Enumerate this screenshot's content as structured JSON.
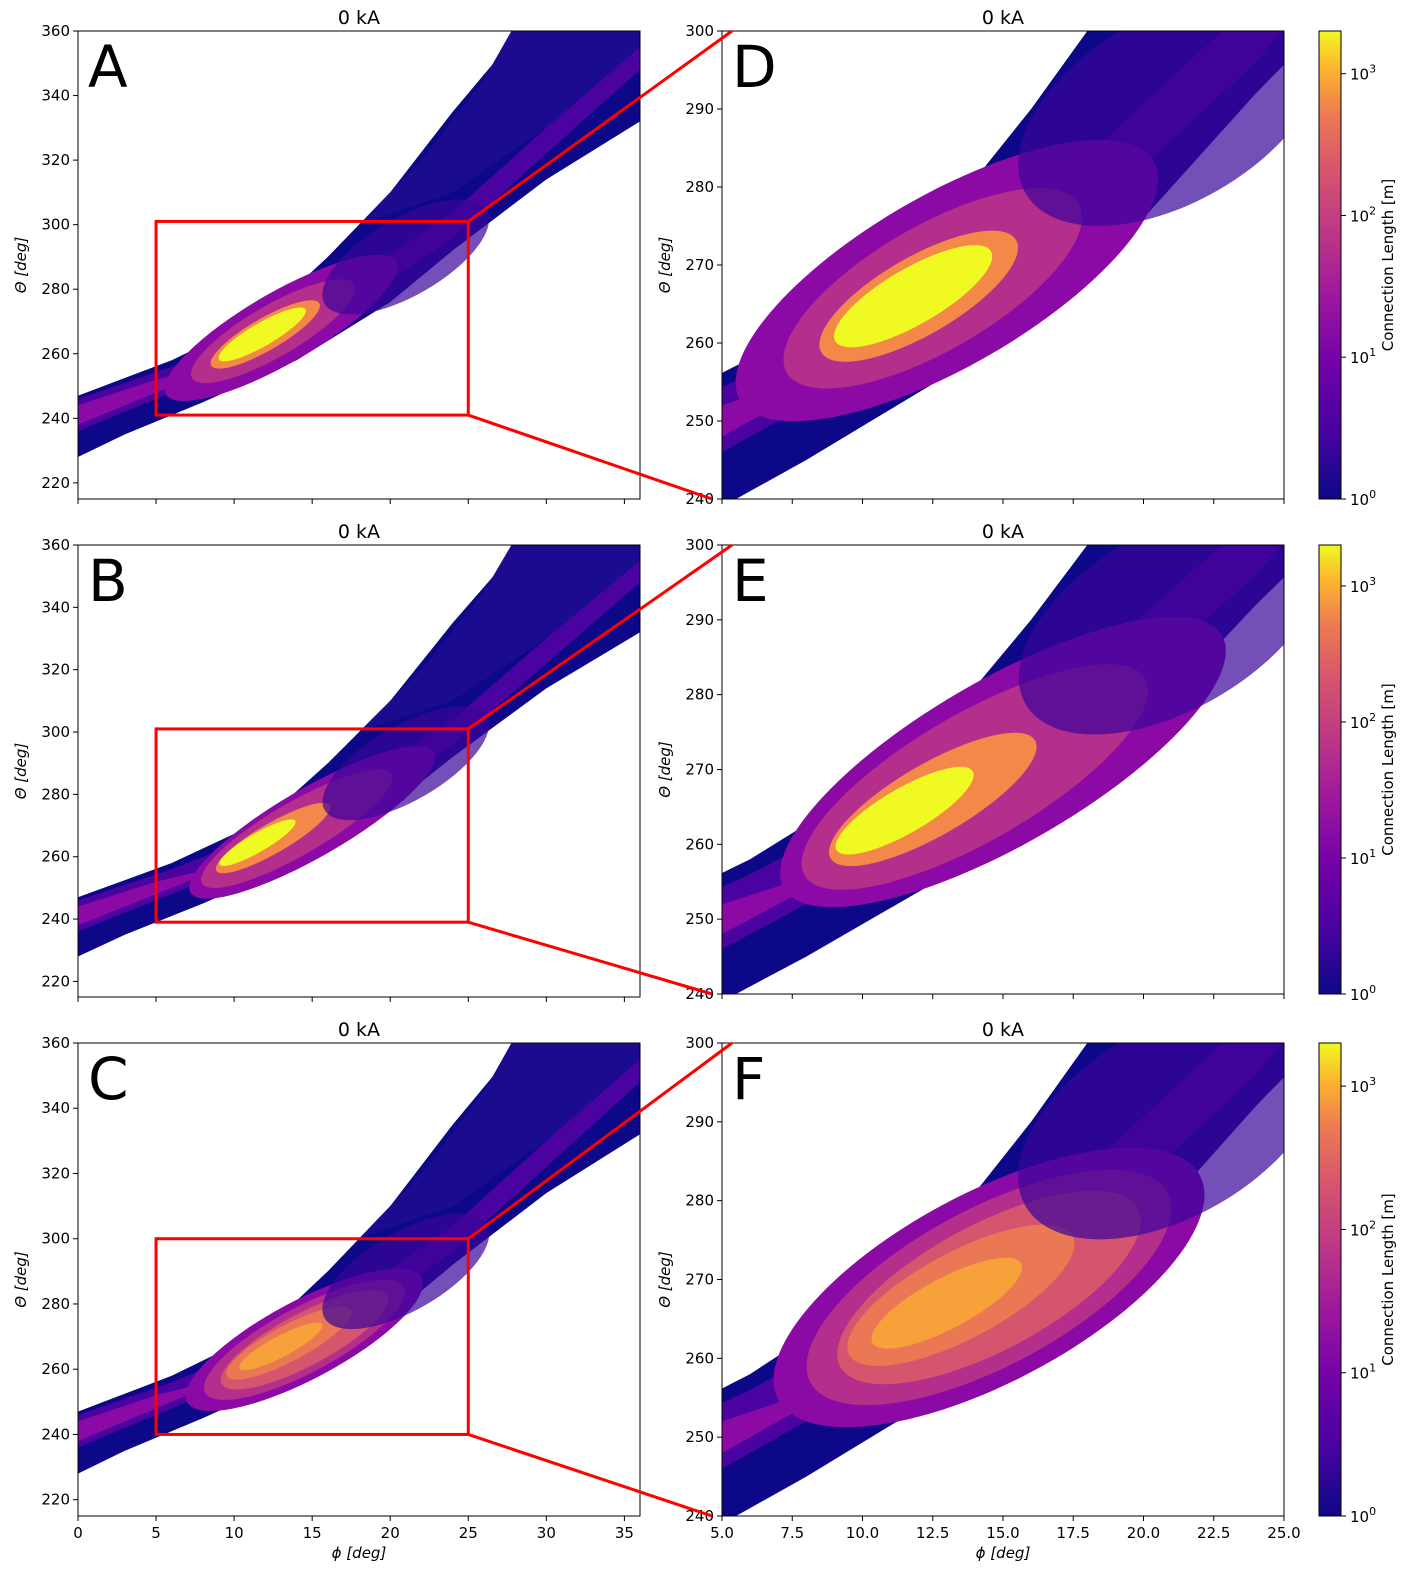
{
  "figure_title": "0 kA",
  "chart_data": [
    {
      "type": "heatmap",
      "panel": "A",
      "title": "0 kA",
      "xlabel": "ϕ [deg]",
      "ylabel": "Θ [deg]",
      "xlim": [
        0,
        36
      ],
      "ylim": [
        215,
        360
      ],
      "x_ticks": [
        0,
        5,
        10,
        15,
        20,
        25,
        30,
        35
      ],
      "y_ticks": [
        220,
        240,
        260,
        280,
        300,
        320,
        340,
        360
      ],
      "show_x_tick_labels": false,
      "show_xlabel": false,
      "zoom_box": {
        "x": [
          5,
          25
        ],
        "y": [
          241,
          301
        ]
      }
    },
    {
      "type": "heatmap",
      "panel": "B",
      "title": "0 kA",
      "xlabel": "ϕ [deg]",
      "ylabel": "Θ [deg]",
      "xlim": [
        0,
        36
      ],
      "ylim": [
        215,
        360
      ],
      "x_ticks": [
        0,
        5,
        10,
        15,
        20,
        25,
        30,
        35
      ],
      "y_ticks": [
        220,
        240,
        260,
        280,
        300,
        320,
        340,
        360
      ],
      "show_x_tick_labels": false,
      "show_xlabel": false,
      "zoom_box": {
        "x": [
          5,
          25
        ],
        "y": [
          239,
          301
        ]
      }
    },
    {
      "type": "heatmap",
      "panel": "C",
      "title": "0 kA",
      "xlabel": "ϕ [deg]",
      "ylabel": "Θ [deg]",
      "xlim": [
        0,
        36
      ],
      "ylim": [
        215,
        360
      ],
      "x_ticks": [
        0,
        5,
        10,
        15,
        20,
        25,
        30,
        35
      ],
      "y_ticks": [
        220,
        240,
        260,
        280,
        300,
        320,
        340,
        360
      ],
      "show_x_tick_labels": true,
      "show_xlabel": true,
      "zoom_box": {
        "x": [
          5,
          25
        ],
        "y": [
          240,
          300
        ]
      }
    },
    {
      "type": "heatmap",
      "panel": "D",
      "title": "0 kA",
      "xlabel": "ϕ [deg]",
      "ylabel": "Θ [deg]",
      "xlim": [
        5,
        25
      ],
      "ylim": [
        240,
        300
      ],
      "x_ticks": [
        5.0,
        7.5,
        10.0,
        12.5,
        15.0,
        17.5,
        20.0,
        22.5,
        25.0
      ],
      "y_ticks": [
        240,
        250,
        260,
        270,
        280,
        290,
        300
      ],
      "show_x_tick_labels": false,
      "show_xlabel": false
    },
    {
      "type": "heatmap",
      "panel": "E",
      "title": "0 kA",
      "xlabel": "ϕ [deg]",
      "ylabel": "Θ [deg]",
      "xlim": [
        5,
        25
      ],
      "ylim": [
        240,
        300
      ],
      "x_ticks": [
        5.0,
        7.5,
        10.0,
        12.5,
        15.0,
        17.5,
        20.0,
        22.5,
        25.0
      ],
      "y_ticks": [
        240,
        250,
        260,
        270,
        280,
        290,
        300
      ],
      "show_x_tick_labels": false,
      "show_xlabel": false
    },
    {
      "type": "heatmap",
      "panel": "F",
      "title": "0 kA",
      "xlabel": "ϕ [deg]",
      "ylabel": "Θ [deg]",
      "xlim": [
        5,
        25
      ],
      "ylim": [
        240,
        300
      ],
      "x_ticks": [
        5.0,
        7.5,
        10.0,
        12.5,
        15.0,
        17.5,
        20.0,
        22.5,
        25.0
      ],
      "y_ticks": [
        240,
        250,
        260,
        270,
        280,
        290,
        300
      ],
      "show_x_tick_labels": true,
      "show_xlabel": true
    }
  ],
  "colorbar": {
    "label": "Connection Length [m]",
    "scale": "log",
    "range": [
      1,
      2000
    ],
    "colormap": "plasma",
    "ticks": [
      {
        "value": 1,
        "base": "10",
        "exp": "0"
      },
      {
        "value": 10,
        "base": "10",
        "exp": "1"
      },
      {
        "value": 100,
        "base": "10",
        "exp": "2"
      },
      {
        "value": 1000,
        "base": "10",
        "exp": "3"
      }
    ]
  },
  "colors": {
    "zoom_box": "#ff0000",
    "plasma_stops": [
      "#0d0887",
      "#5302a3",
      "#8b0aa5",
      "#b83289",
      "#db5c68",
      "#f48849",
      "#febc2a",
      "#f0f921"
    ]
  }
}
